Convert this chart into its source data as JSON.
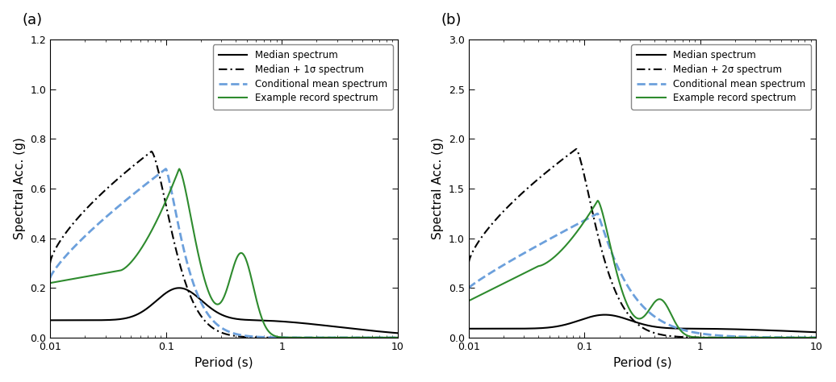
{
  "panel_a": {
    "label": "(a)",
    "ylabel": "Spectral Acc. (g)",
    "xlabel": "Period (s)",
    "ylim": [
      0,
      1.2
    ],
    "yticks": [
      0,
      0.2,
      0.4,
      0.6,
      0.8,
      1.0,
      1.2
    ],
    "legend": [
      "Median spectrum",
      "Median + 1σ spectrum",
      "Conditional mean spectrum",
      "Example record spectrum"
    ],
    "line_styles": [
      {
        "color": "#000000",
        "ls": "-",
        "lw": 1.5
      },
      {
        "color": "#000000",
        "ls": "-.",
        "lw": 1.5
      },
      {
        "color": "#6ca0dc",
        "ls": "--",
        "lw": 2.0
      },
      {
        "color": "#2e8b2e",
        "ls": "-",
        "lw": 1.5
      }
    ]
  },
  "panel_b": {
    "label": "(b)",
    "ylabel": "Spectral Acc. (g)",
    "xlabel": "Period (s)",
    "ylim": [
      0,
      3.0
    ],
    "yticks": [
      0,
      0.5,
      1.0,
      1.5,
      2.0,
      2.5,
      3.0
    ],
    "legend": [
      "Median spectrum",
      "Median + 2σ spectrum",
      "Conditional mean spectrum",
      "Example record spectrum"
    ],
    "line_styles": [
      {
        "color": "#000000",
        "ls": "-",
        "lw": 1.5
      },
      {
        "color": "#000000",
        "ls": "-.",
        "lw": 1.5
      },
      {
        "color": "#6ca0dc",
        "ls": "--",
        "lw": 2.0
      },
      {
        "color": "#2e8b2e",
        "ls": "-",
        "lw": 1.5
      }
    ]
  },
  "background_color": "#ffffff",
  "tick_direction": "in",
  "font_size": 11
}
